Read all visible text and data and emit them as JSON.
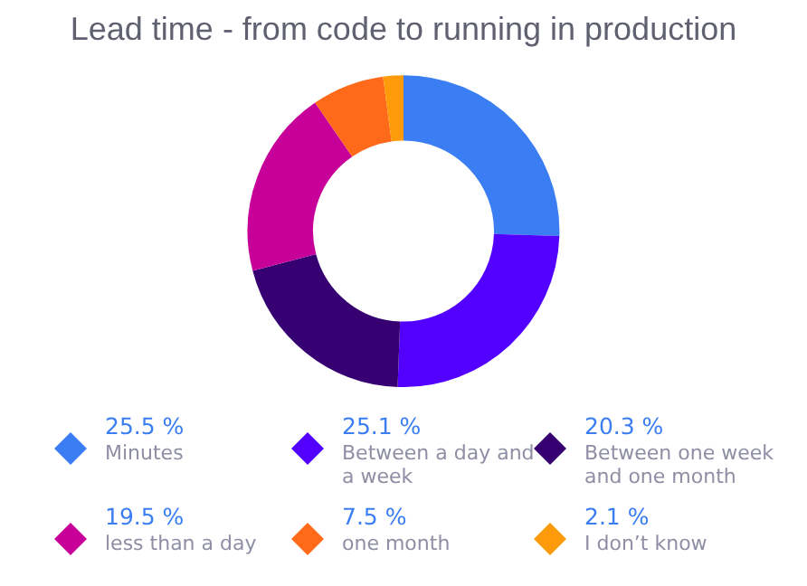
{
  "chart_data": {
    "type": "donut",
    "title": "Lead time - from code to running in production",
    "categories": [
      "Minutes",
      "Between a day and a week",
      "Between one week and one month",
      "less than a day",
      "one month",
      "I don’t know"
    ],
    "values": [
      25.5,
      25.1,
      20.3,
      19.5,
      7.5,
      2.1
    ],
    "value_labels": [
      "25.5 %",
      "25.1 %",
      "20.3 %",
      "19.5 %",
      "7.5 %",
      "2.1 %"
    ],
    "colors": [
      "#3b7ef4",
      "#5200ff",
      "#360073",
      "#c8009a",
      "#fe6a1a",
      "#fd9b0a"
    ],
    "legend": "bottom"
  }
}
